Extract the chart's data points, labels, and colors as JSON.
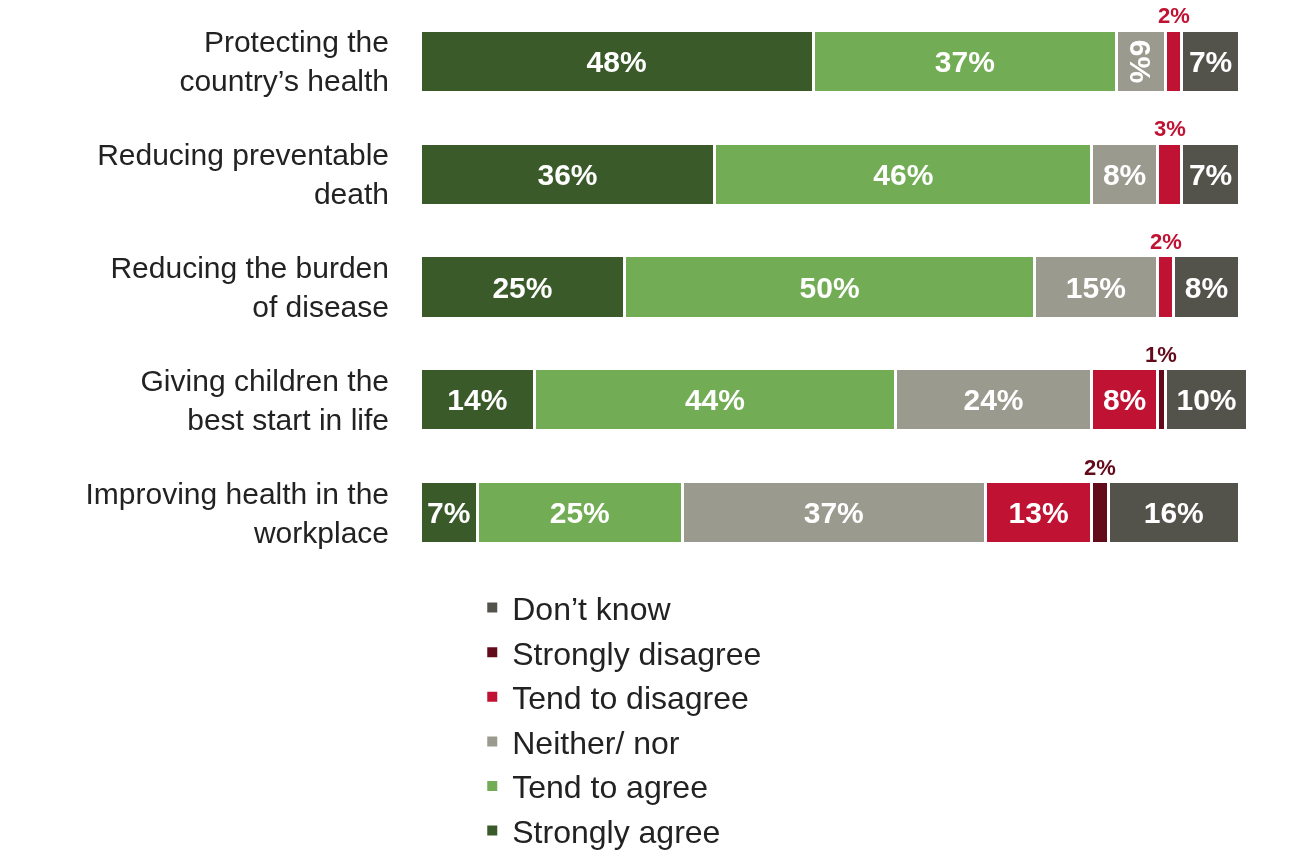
{
  "chart_data": {
    "type": "bar",
    "orientation": "horizontal",
    "stacked": true,
    "legend": "bottom",
    "categories": [
      "Protecting the\ncountry’s health",
      "Reducing preventable\ndeath",
      "Reducing the burden\nof disease",
      "Giving children the\nbest start in life",
      "Improving health in the\nworkplace"
    ],
    "series": [
      {
        "name": "Strongly agree",
        "color": "#3a5a29",
        "values": [
          48,
          36,
          25,
          14,
          7
        ],
        "value_labels": [
          "48%",
          "36%",
          "25%",
          "14%",
          "7%"
        ]
      },
      {
        "name": "Tend to agree",
        "color": "#72ad55",
        "values": [
          37,
          46,
          50,
          44,
          25
        ],
        "value_labels": [
          "37%",
          "46%",
          "50%",
          "44%",
          "25%"
        ]
      },
      {
        "name": "Neither/ nor",
        "color": "#9b9a8f",
        "values": [
          6,
          8,
          15,
          24,
          37
        ],
        "value_labels": [
          "6%",
          "8%",
          "15%",
          "24%",
          "37%"
        ]
      },
      {
        "name": "Tend to disagree",
        "color": "#c01232",
        "values": [
          2,
          3,
          2,
          8,
          13
        ],
        "value_labels": [
          "2%",
          "3%",
          "2%",
          "8%",
          "13%"
        ]
      },
      {
        "name": "Strongly disagree",
        "color": "#630a1b",
        "values": [
          null,
          null,
          null,
          1,
          2
        ],
        "value_labels": [
          null,
          null,
          null,
          "1%",
          "2%"
        ]
      },
      {
        "name": "Don’t know",
        "color": "#54534b",
        "values": [
          7,
          7,
          8,
          10,
          16
        ],
        "value_labels": [
          "7%",
          "7%",
          "8%",
          "10%",
          "16%"
        ]
      }
    ]
  }
}
